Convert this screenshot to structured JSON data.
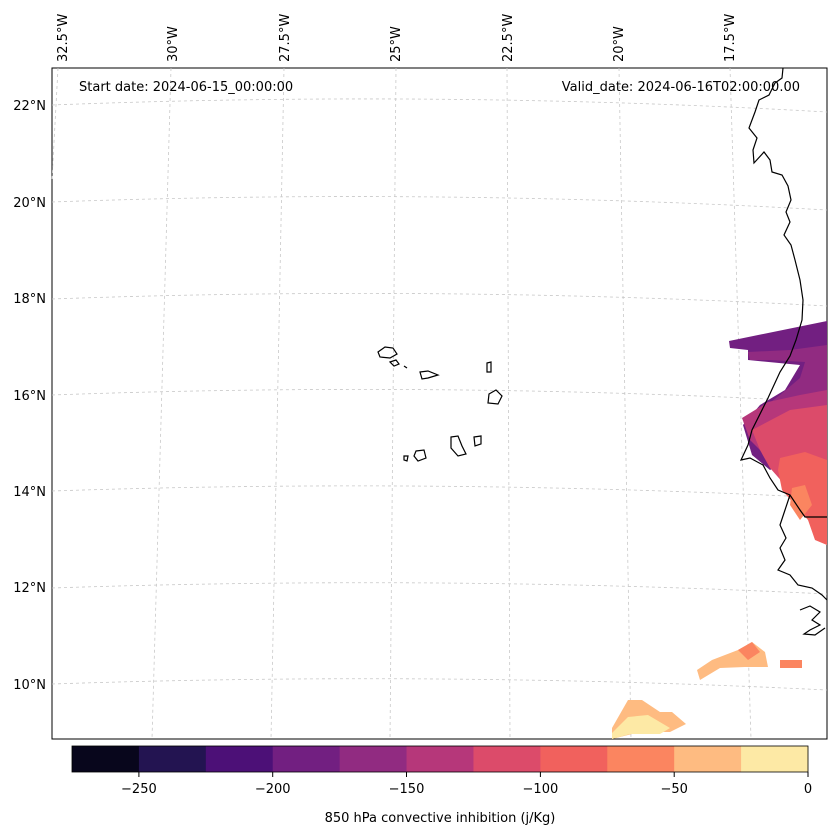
{
  "header": {
    "start_date": "Start date: 2024-06-15_00:00:00",
    "valid_date": "Valid_date: 2024-06-16T02:00:00.00"
  },
  "map": {
    "longitude_labels": [
      "32.5°W",
      "30°W",
      "27.5°W",
      "25°W",
      "22.5°W",
      "20°W",
      "17.5°W"
    ],
    "latitude_labels": [
      "22°N",
      "20°N",
      "18°N",
      "16°N",
      "14°N",
      "12°N",
      "10°N"
    ],
    "field": "850 hPa convective inhibition"
  },
  "colorbar": {
    "label": "850 hPa convective inhibition (j/Kg)",
    "tick_labels": [
      "−250",
      "−200",
      "−150",
      "−100",
      "−50",
      "0"
    ],
    "levels": [
      -275,
      -250,
      -225,
      -200,
      -175,
      -150,
      -125,
      -100,
      -75,
      -50,
      -25,
      0
    ],
    "colors": [
      "#08061c",
      "#231451",
      "#4c1077",
      "#721f81",
      "#912b81",
      "#b6377a",
      "#dc4b6a",
      "#f1615d",
      "#fb8560",
      "#febb81",
      "#fde9a5"
    ]
  }
}
